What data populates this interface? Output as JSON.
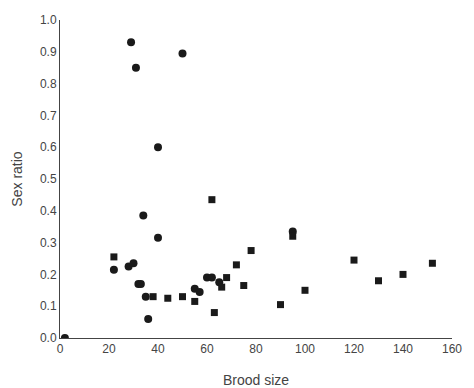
{
  "chart_data": {
    "type": "scatter",
    "xlabel": "Brood size",
    "ylabel": "Sex ratio",
    "xlim": [
      0,
      160
    ],
    "ylim": [
      0.0,
      1.0
    ],
    "xticks": [
      0,
      20,
      40,
      60,
      80,
      100,
      120,
      140,
      160
    ],
    "yticks": [
      {
        "value": 0.0,
        "label": "0.0"
      },
      0.1,
      0.2,
      0.3,
      0.4,
      0.5,
      0.6,
      0.7,
      0.8,
      0.9,
      {
        "value": 1.0,
        "label": "1.0"
      }
    ],
    "grid": false,
    "series": [
      {
        "marker": "circle",
        "color": "#1a1a1a",
        "x": [
          2,
          22,
          28,
          29,
          30,
          31,
          32,
          33,
          34,
          35,
          36,
          40,
          40,
          50,
          55,
          57,
          60,
          62,
          65,
          95
        ],
        "values": [
          0.0,
          0.215,
          0.225,
          0.93,
          0.235,
          0.85,
          0.17,
          0.17,
          0.385,
          0.13,
          0.06,
          0.6,
          0.315,
          0.895,
          0.155,
          0.145,
          0.19,
          0.19,
          0.175,
          0.335
        ]
      },
      {
        "marker": "square",
        "color": "#1a1a1a",
        "x": [
          22,
          38,
          44,
          50,
          55,
          62,
          63,
          66,
          68,
          72,
          75,
          78,
          90,
          95,
          100,
          120,
          130,
          140,
          152
        ],
        "values": [
          0.255,
          0.13,
          0.125,
          0.13,
          0.115,
          0.435,
          0.08,
          0.16,
          0.19,
          0.23,
          0.165,
          0.275,
          0.105,
          0.32,
          0.15,
          0.245,
          0.18,
          0.2,
          0.235
        ]
      }
    ]
  }
}
